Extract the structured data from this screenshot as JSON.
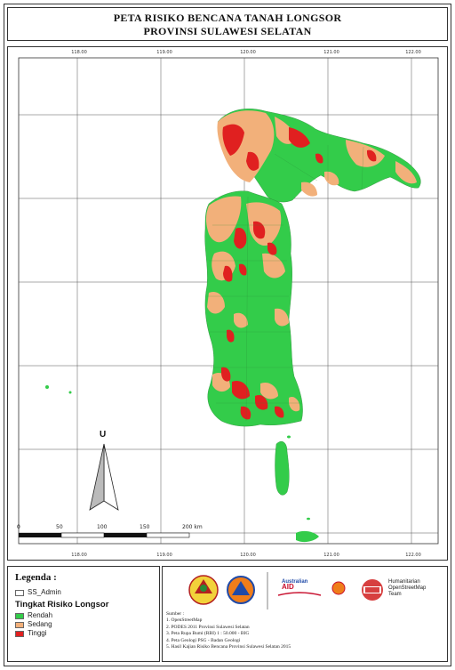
{
  "title": {
    "line1": "PETA RISIKO BENCANA TANAH LONGSOR",
    "line2": "PROVINSI SULAWESI SELATAN"
  },
  "map": {
    "lon_ticks_top": [
      "118.00",
      "119.00",
      "120.00",
      "121.00",
      "122.00"
    ],
    "lon_ticks_bottom": [
      "118.00",
      "119.00",
      "120.00",
      "121.00",
      "122.00"
    ],
    "north_arrow_label": "U",
    "scale_labels": [
      "0",
      "50",
      "100",
      "150",
      "200 km"
    ],
    "colors": {
      "rendah": "#33cc4a",
      "sedang": "#f2b07a",
      "tinggi": "#e02020",
      "sea": "#ffffff",
      "grid": "#555555"
    }
  },
  "legend": {
    "title": "Legenda :",
    "admin_label": "SS_Admin",
    "subtitle": "Tingkat Risiko Longsor",
    "classes": [
      {
        "label": "Rendah",
        "color": "#33cc4a"
      },
      {
        "label": "Sedang",
        "color": "#f2b07a"
      },
      {
        "label": "Tinggi",
        "color": "#e02020"
      }
    ]
  },
  "logos": {
    "aid_line1": "Australian",
    "aid_line2": "AID",
    "hot_line1": "Humanitarian",
    "hot_line2": "OpenStreetMap",
    "hot_line3": "Team"
  },
  "sources": {
    "heading": "Sumber :",
    "items": [
      "1. OpenStreetMap",
      "2. PODES 2011 Provinsi Sulawesi Selatan",
      "3. Peta Rupa Bumi (RBI) 1 : 50.000 - BIG",
      "4. Peta Geologi PSG - Badan Geologi",
      "5. Hasil Kajian Risiko Bencana Provinsi Sulawesi Selatan 2015"
    ]
  }
}
